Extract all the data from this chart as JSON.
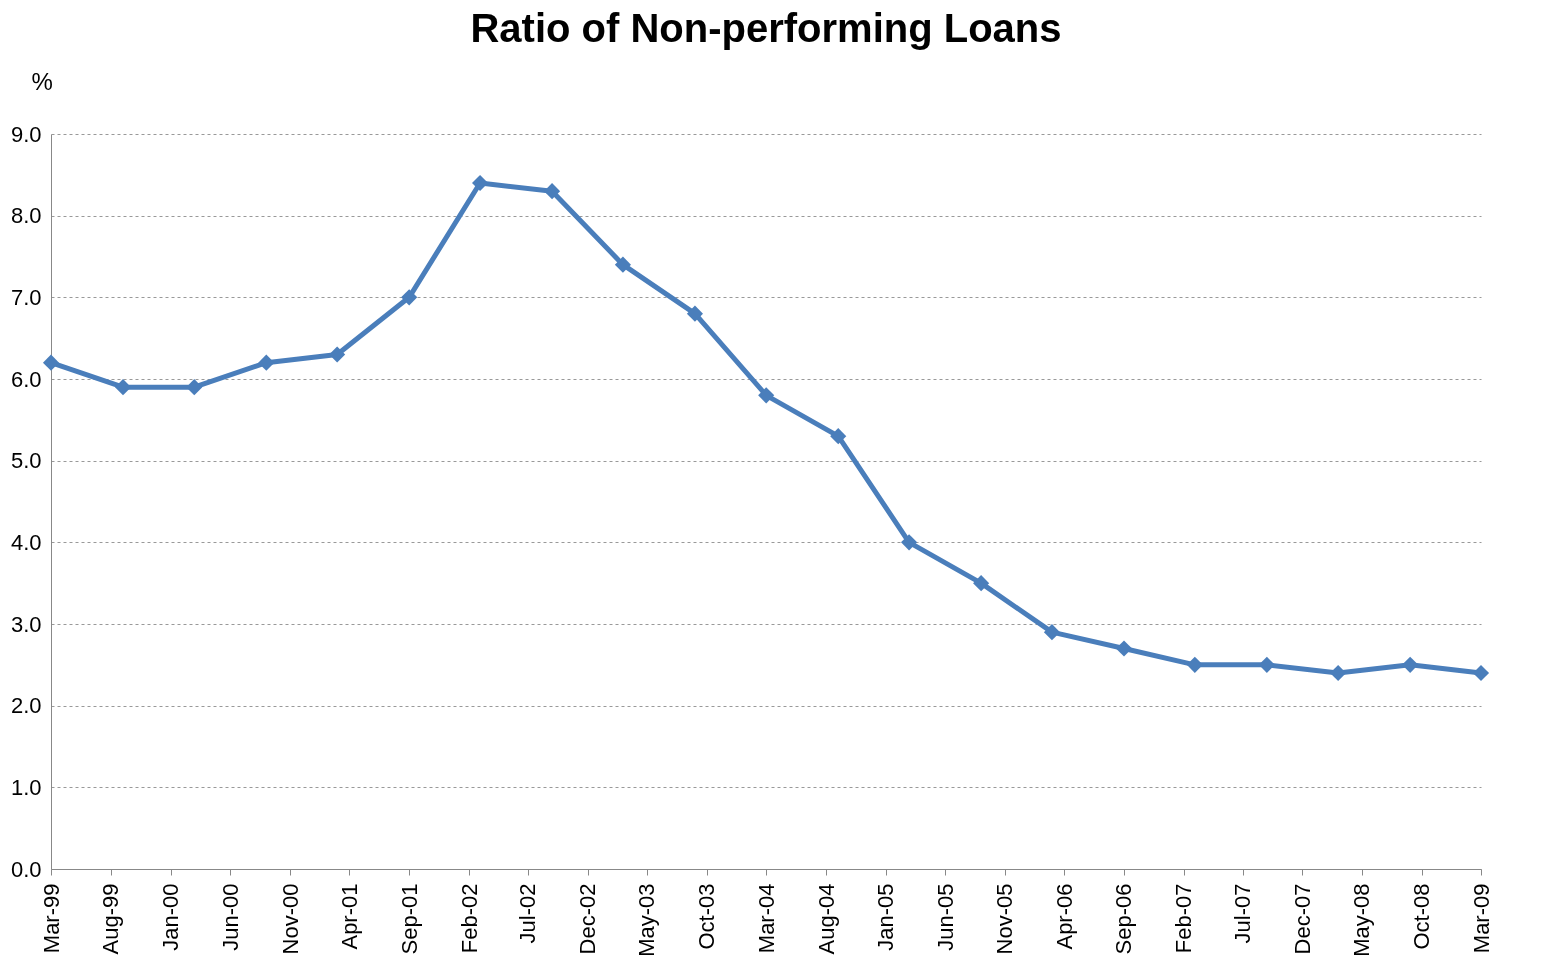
{
  "chart_data": {
    "type": "line",
    "title": "Ratio of Non-performing Loans",
    "ylabel": "%",
    "x": [
      "1999-03",
      "1999-09",
      "2000-03",
      "2000-09",
      "2001-03",
      "2001-09",
      "2002-03",
      "2002-09",
      "2003-03",
      "2003-09",
      "2004-03",
      "2004-09",
      "2005-03",
      "2005-09",
      "2006-03",
      "2006-09",
      "2007-03",
      "2007-09",
      "2008-03",
      "2008-09",
      "2009-03"
    ],
    "series": [
      {
        "color": "#4a7ebb",
        "values": [
          6.2,
          5.9,
          5.9,
          6.2,
          6.3,
          7.0,
          8.4,
          8.3,
          7.4,
          6.8,
          5.8,
          5.3,
          4.0,
          3.5,
          2.9,
          2.7,
          2.5,
          2.5,
          2.4,
          2.5,
          2.4
        ]
      }
    ],
    "xlim": [
      "1999-03",
      "2009-03"
    ],
    "xticks": [
      {
        "value": "1999-03",
        "label": "Mar-99"
      },
      {
        "value": "1999-08",
        "label": "Aug-99"
      },
      {
        "value": "2000-01",
        "label": "Jan-00"
      },
      {
        "value": "2000-06",
        "label": "Jun-00"
      },
      {
        "value": "2000-11",
        "label": "Nov-00"
      },
      {
        "value": "2001-04",
        "label": "Apr-01"
      },
      {
        "value": "2001-09",
        "label": "Sep-01"
      },
      {
        "value": "2002-02",
        "label": "Feb-02"
      },
      {
        "value": "2002-07",
        "label": "Jul-02"
      },
      {
        "value": "2002-12",
        "label": "Dec-02"
      },
      {
        "value": "2003-05",
        "label": "May-03"
      },
      {
        "value": "2003-10",
        "label": "Oct-03"
      },
      {
        "value": "2004-03",
        "label": "Mar-04"
      },
      {
        "value": "2004-08",
        "label": "Aug-04"
      },
      {
        "value": "2005-01",
        "label": "Jan-05"
      },
      {
        "value": "2005-06",
        "label": "Jun-05"
      },
      {
        "value": "2005-11",
        "label": "Nov-05"
      },
      {
        "value": "2006-04",
        "label": "Apr-06"
      },
      {
        "value": "2006-09",
        "label": "Sep-06"
      },
      {
        "value": "2007-02",
        "label": "Feb-07"
      },
      {
        "value": "2007-07",
        "label": "Jul-07"
      },
      {
        "value": "2007-12",
        "label": "Dec-07"
      },
      {
        "value": "2008-05",
        "label": "May-08"
      },
      {
        "value": "2008-10",
        "label": "Oct-08"
      },
      {
        "value": "2009-03",
        "label": "Mar-09"
      }
    ],
    "ylim": [
      0,
      9
    ],
    "yticks": [
      {
        "value": 0,
        "label": "0.0"
      },
      {
        "value": 1,
        "label": "1.0"
      },
      {
        "value": 2,
        "label": "2.0"
      },
      {
        "value": 3,
        "label": "3.0"
      },
      {
        "value": 4,
        "label": "4.0"
      },
      {
        "value": 5,
        "label": "5.0"
      },
      {
        "value": 6,
        "label": "6.0"
      },
      {
        "value": 7,
        "label": "7.0"
      },
      {
        "value": 8,
        "label": "8.0"
      },
      {
        "value": 9,
        "label": "9.0"
      }
    ],
    "grid": "y",
    "legend": false,
    "marker": "diamond",
    "line_style": "solid"
  }
}
